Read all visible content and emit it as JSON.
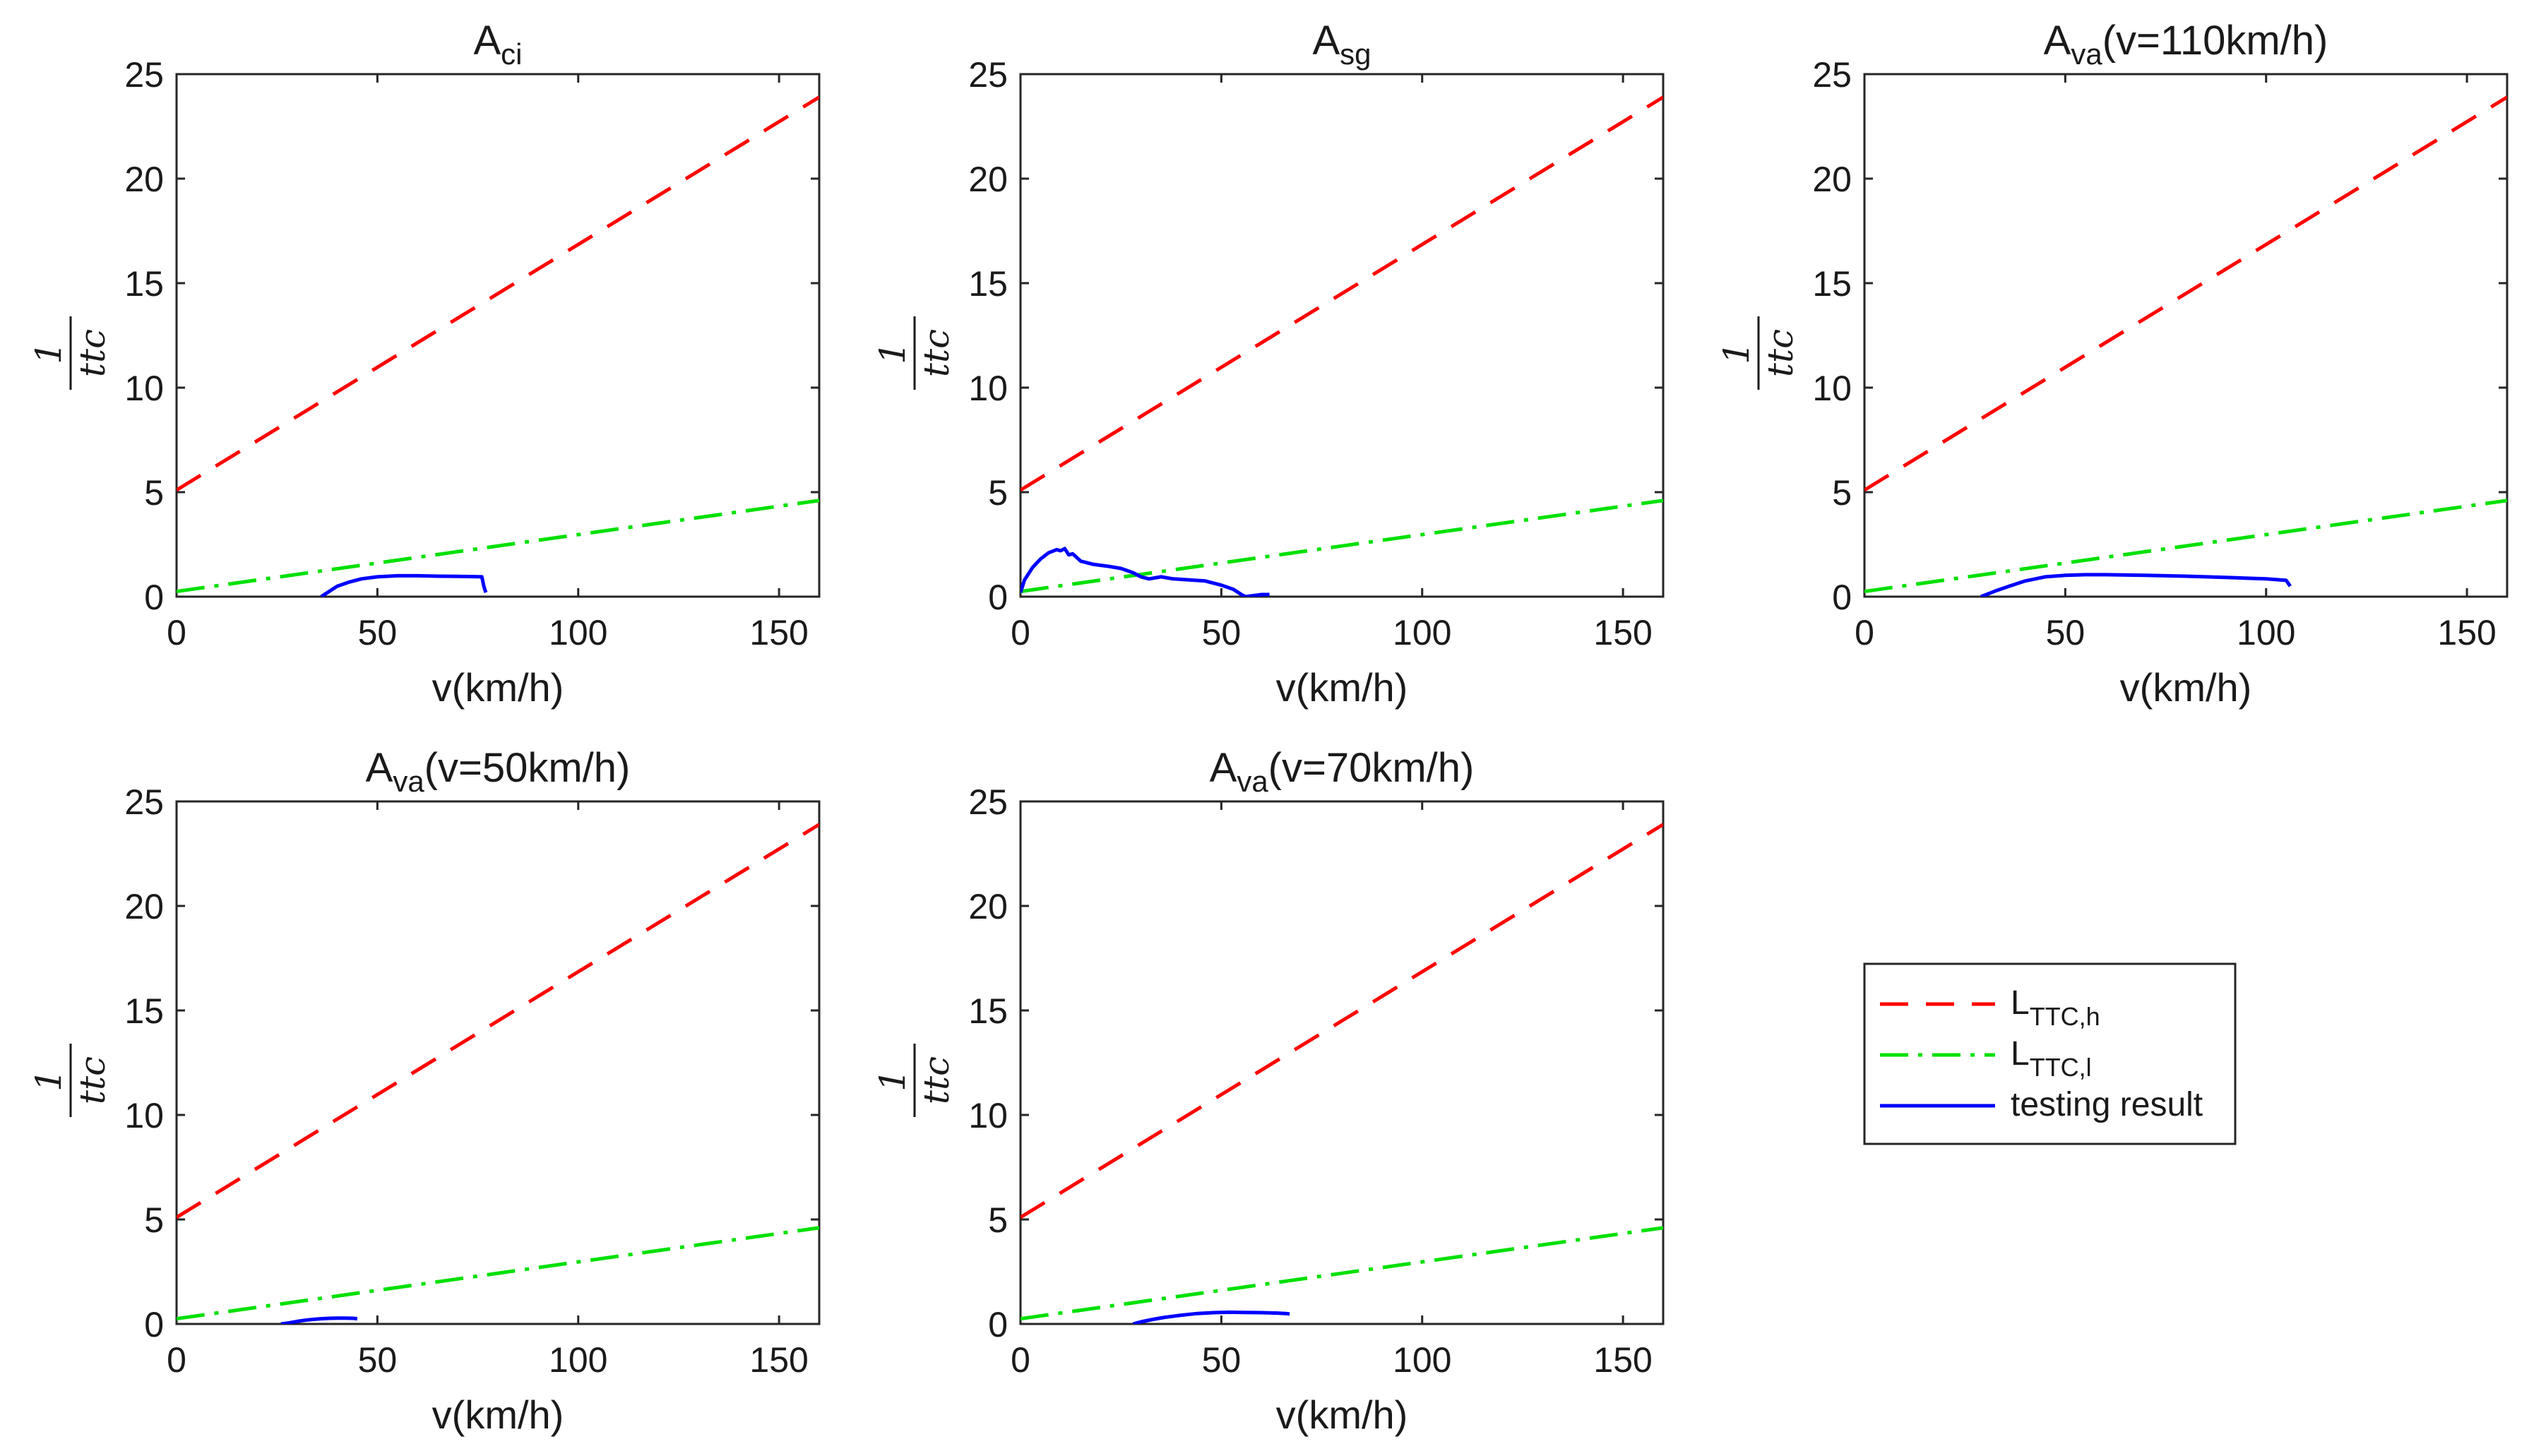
{
  "colors": {
    "high": "#ff0000",
    "low": "#00e000",
    "result": "#0000ff",
    "axis": "#262626"
  },
  "legend": {
    "items": [
      {
        "base": "L",
        "sub": "TTC,h",
        "style": "dashed",
        "color": "#ff0000"
      },
      {
        "base": "L",
        "sub": "TTC,l",
        "style": "dashdot",
        "color": "#00e000"
      },
      {
        "base": "testing result",
        "sub": "",
        "style": "solid",
        "color": "#0000ff"
      }
    ]
  },
  "chart_data": [
    {
      "type": "line",
      "title": {
        "base": "A",
        "sub": "ci",
        "rest": ""
      },
      "xlabel": "v(km/h)",
      "ylabel": {
        "num": "1",
        "den": "ttc"
      },
      "xlim": [
        0,
        160
      ],
      "ylim": [
        0,
        25
      ],
      "xticks": [
        0,
        50,
        100,
        150
      ],
      "yticks": [
        0,
        5,
        10,
        15,
        20,
        25
      ],
      "series": [
        {
          "name": "L_TTC,h",
          "style": "dashed",
          "x": [
            0,
            160
          ],
          "y": [
            5.1,
            23.9
          ]
        },
        {
          "name": "L_TTC,l",
          "style": "dashdot",
          "x": [
            0,
            160
          ],
          "y": [
            0.25,
            4.6
          ]
        },
        {
          "name": "testing result",
          "style": "solid",
          "x": [
            36,
            38,
            40,
            43,
            46,
            50,
            55,
            60,
            65,
            70,
            74,
            76,
            76.5,
            77
          ],
          "y": [
            0,
            0.25,
            0.5,
            0.7,
            0.85,
            0.95,
            1.0,
            1.0,
            0.98,
            0.97,
            0.96,
            0.95,
            0.5,
            0.2
          ]
        }
      ]
    },
    {
      "type": "line",
      "title": {
        "base": "A",
        "sub": "sg",
        "rest": ""
      },
      "xlabel": "v(km/h)",
      "ylabel": {
        "num": "1",
        "den": "ttc"
      },
      "xlim": [
        0,
        160
      ],
      "ylim": [
        0,
        25
      ],
      "xticks": [
        0,
        50,
        100,
        150
      ],
      "yticks": [
        0,
        5,
        10,
        15,
        20,
        25
      ],
      "series": [
        {
          "name": "L_TTC,h",
          "style": "dashed",
          "x": [
            0,
            160
          ],
          "y": [
            5.1,
            23.9
          ]
        },
        {
          "name": "L_TTC,l",
          "style": "dashdot",
          "x": [
            0,
            160
          ],
          "y": [
            0.25,
            4.6
          ]
        },
        {
          "name": "testing result",
          "style": "solid",
          "x": [
            0,
            1,
            3,
            5,
            7,
            9,
            10,
            11,
            12,
            13,
            15,
            18,
            22,
            25,
            28,
            30,
            32,
            35,
            38,
            42,
            46,
            50,
            53,
            55,
            56,
            58,
            60,
            62
          ],
          "y": [
            0.2,
            0.8,
            1.4,
            1.8,
            2.1,
            2.25,
            2.2,
            2.3,
            2.0,
            2.05,
            1.7,
            1.55,
            1.45,
            1.35,
            1.15,
            0.95,
            0.85,
            0.95,
            0.85,
            0.8,
            0.75,
            0.55,
            0.35,
            0.1,
            0.0,
            0.05,
            0.1,
            0.1
          ]
        }
      ]
    },
    {
      "type": "line",
      "title": {
        "base": "A",
        "sub": "va",
        "rest": "(v=110km/h)"
      },
      "xlabel": "v(km/h)",
      "ylabel": {
        "num": "1",
        "den": "ttc"
      },
      "xlim": [
        0,
        160
      ],
      "ylim": [
        0,
        25
      ],
      "xticks": [
        0,
        50,
        100,
        150
      ],
      "yticks": [
        0,
        5,
        10,
        15,
        20,
        25
      ],
      "series": [
        {
          "name": "L_TTC,h",
          "style": "dashed",
          "x": [
            0,
            160
          ],
          "y": [
            5.1,
            23.9
          ]
        },
        {
          "name": "L_TTC,l",
          "style": "dashdot",
          "x": [
            0,
            160
          ],
          "y": [
            0.25,
            4.6
          ]
        },
        {
          "name": "testing result",
          "style": "solid",
          "x": [
            29,
            31,
            33,
            36,
            40,
            45,
            50,
            55,
            60,
            70,
            80,
            90,
            100,
            105,
            106
          ],
          "y": [
            0,
            0.15,
            0.3,
            0.5,
            0.75,
            0.95,
            1.02,
            1.05,
            1.05,
            1.02,
            0.98,
            0.92,
            0.85,
            0.78,
            0.5
          ]
        }
      ]
    },
    {
      "type": "line",
      "title": {
        "base": "A",
        "sub": "va",
        "rest": "(v=50km/h)"
      },
      "xlabel": "v(km/h)",
      "ylabel": {
        "num": "1",
        "den": "ttc"
      },
      "xlim": [
        0,
        160
      ],
      "ylim": [
        0,
        25
      ],
      "xticks": [
        0,
        50,
        100,
        150
      ],
      "yticks": [
        0,
        5,
        10,
        15,
        20,
        25
      ],
      "series": [
        {
          "name": "L_TTC,h",
          "style": "dashed",
          "x": [
            0,
            160
          ],
          "y": [
            5.1,
            23.9
          ]
        },
        {
          "name": "L_TTC,l",
          "style": "dashdot",
          "x": [
            0,
            160
          ],
          "y": [
            0.25,
            4.6
          ]
        },
        {
          "name": "testing result",
          "style": "solid",
          "x": [
            26,
            28,
            30,
            32,
            34,
            36,
            38,
            40,
            42,
            44,
            45
          ],
          "y": [
            0,
            0.05,
            0.12,
            0.18,
            0.22,
            0.25,
            0.27,
            0.28,
            0.28,
            0.27,
            0.25
          ]
        }
      ]
    },
    {
      "type": "line",
      "title": {
        "base": "A",
        "sub": "va",
        "rest": "(v=70km/h)"
      },
      "xlabel": "v(km/h)",
      "ylabel": {
        "num": "1",
        "den": "ttc"
      },
      "xlim": [
        0,
        160
      ],
      "ylim": [
        0,
        25
      ],
      "xticks": [
        0,
        50,
        100,
        150
      ],
      "yticks": [
        0,
        5,
        10,
        15,
        20,
        25
      ],
      "series": [
        {
          "name": "L_TTC,h",
          "style": "dashed",
          "x": [
            0,
            160
          ],
          "y": [
            5.1,
            23.9
          ]
        },
        {
          "name": "L_TTC,l",
          "style": "dashdot",
          "x": [
            0,
            160
          ],
          "y": [
            0.25,
            4.6
          ]
        },
        {
          "name": "testing result",
          "style": "solid",
          "x": [
            28,
            30,
            33,
            36,
            40,
            44,
            48,
            52,
            56,
            60,
            64,
            66,
            67
          ],
          "y": [
            0,
            0.1,
            0.22,
            0.32,
            0.42,
            0.5,
            0.54,
            0.56,
            0.55,
            0.54,
            0.52,
            0.5,
            0.48
          ]
        }
      ]
    }
  ]
}
